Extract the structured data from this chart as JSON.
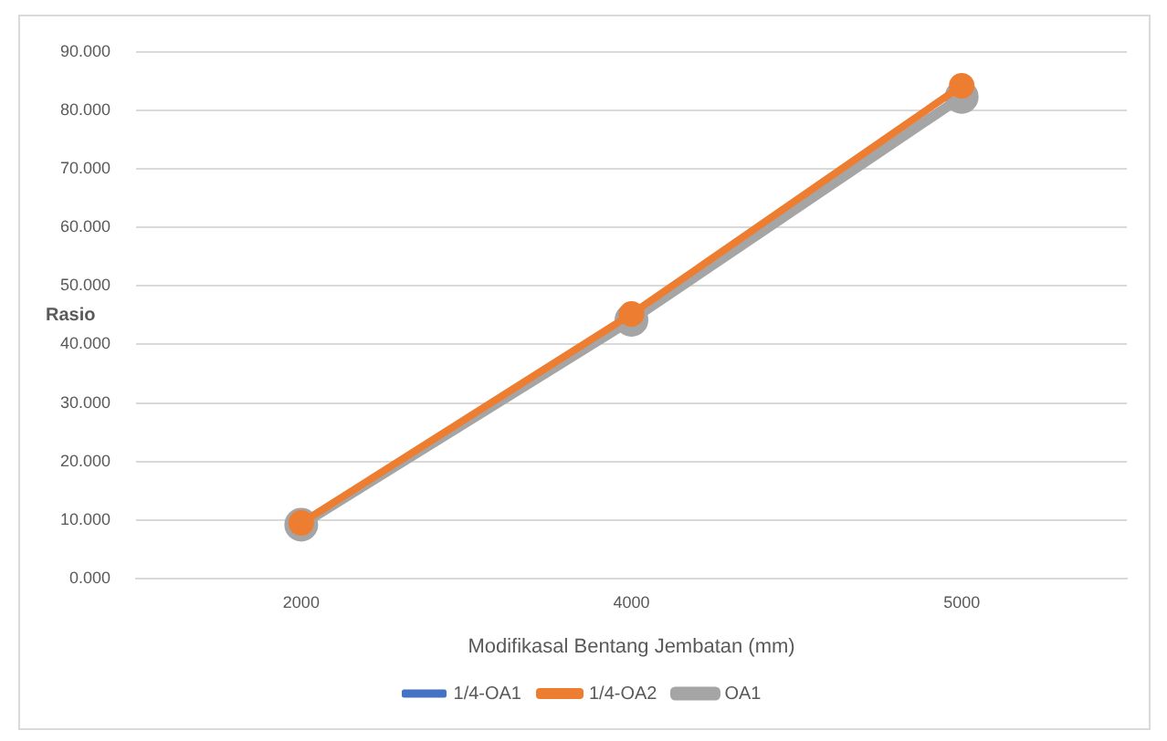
{
  "chart_data": {
    "type": "line",
    "xlabel": "Modifikasal Bentang Jembatan (mm)",
    "ylabel": "Rasio",
    "categories": [
      "2000",
      "4000",
      "5000"
    ],
    "series": [
      {
        "name": "1/4-OA1",
        "color": "#4472c4",
        "values": [
          null,
          null,
          null
        ]
      },
      {
        "name": "1/4-OA2",
        "color": "#ed7d31",
        "values": [
          9.5,
          45.2,
          84.2
        ]
      },
      {
        "name": "OA1",
        "color": "#a5a5a5",
        "values": [
          9.2,
          44.2,
          82.3
        ]
      }
    ],
    "ylim": [
      0,
      90
    ],
    "yticks": [
      {
        "value": 0,
        "label": "0.000"
      },
      {
        "value": 10,
        "label": "10.000"
      },
      {
        "value": 20,
        "label": "20.000"
      },
      {
        "value": 30,
        "label": "30.000"
      },
      {
        "value": 40,
        "label": "40.000"
      },
      {
        "value": 50,
        "label": "50.000"
      },
      {
        "value": 60,
        "label": "60.000"
      },
      {
        "value": 70,
        "label": "70.000"
      },
      {
        "value": 80,
        "label": "80.000"
      },
      {
        "value": 90,
        "label": "90.000"
      }
    ],
    "grid": "y",
    "legend": "bottom",
    "marker": "circle",
    "line_style": "solid"
  }
}
